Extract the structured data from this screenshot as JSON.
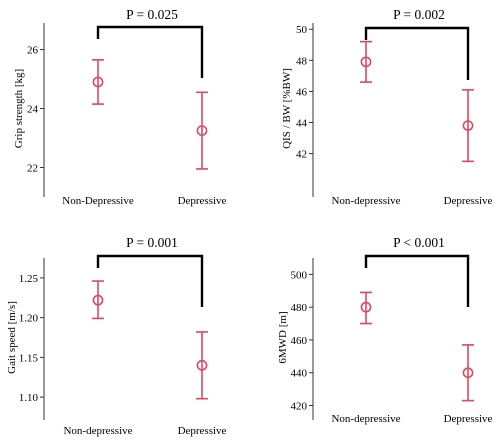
{
  "colors": {
    "marker": "#e0475f",
    "bracket": "#000000",
    "axis": "#333333"
  },
  "chart_data": [
    {
      "type": "scatter",
      "categories": [
        "Non-Depressive",
        "Depressive"
      ],
      "ylabel": "Grip strength [kg]",
      "ylim": [
        21.1,
        26.9
      ],
      "yticks": [
        22,
        24,
        26
      ],
      "y_tick_labels": [
        "22",
        "24",
        "26"
      ],
      "series": [
        {
          "mean": [
            24.9,
            23.25
          ],
          "error_low": [
            24.15,
            21.95
          ],
          "error_high": [
            25.65,
            24.55
          ]
        }
      ],
      "annotation": "P = 0.025"
    },
    {
      "type": "scatter",
      "categories": [
        "Non-depressive",
        "Depressive"
      ],
      "ylabel": "QIS / BW [%BW]",
      "ylim": [
        39.4,
        50.4
      ],
      "yticks": [
        42,
        44,
        46,
        48,
        50
      ],
      "y_tick_labels": [
        "42",
        "44",
        "46",
        "48",
        "50"
      ],
      "series": [
        {
          "mean": [
            47.9,
            43.8
          ],
          "error_low": [
            46.6,
            41.5
          ],
          "error_high": [
            49.2,
            46.1
          ]
        }
      ],
      "annotation": "P = 0.002"
    },
    {
      "type": "scatter",
      "categories": [
        "Non-depressive",
        "Depressive"
      ],
      "ylabel": "Gait speed [m/s]",
      "ylim": [
        1.075,
        1.275
      ],
      "yticks": [
        1.1,
        1.15,
        1.2,
        1.25
      ],
      "y_tick_labels": [
        "1.10",
        "1.15",
        "1.20",
        "1.25"
      ],
      "series": [
        {
          "mean": [
            1.222,
            1.14
          ],
          "error_low": [
            1.199,
            1.098
          ],
          "error_high": [
            1.246,
            1.182
          ]
        }
      ],
      "annotation": "P = 0.001"
    },
    {
      "type": "scatter",
      "categories": [
        "Non-depressive",
        "Depressive"
      ],
      "ylabel": "6MWD [m]",
      "ylim": [
        413,
        510
      ],
      "yticks": [
        420,
        440,
        460,
        480,
        500
      ],
      "y_tick_labels": [
        "420",
        "440",
        "460",
        "480",
        "500"
      ],
      "series": [
        {
          "mean": [
            480,
            440
          ],
          "error_low": [
            470,
            423
          ],
          "error_high": [
            489,
            457
          ]
        }
      ],
      "annotation": "P < 0.001"
    }
  ]
}
